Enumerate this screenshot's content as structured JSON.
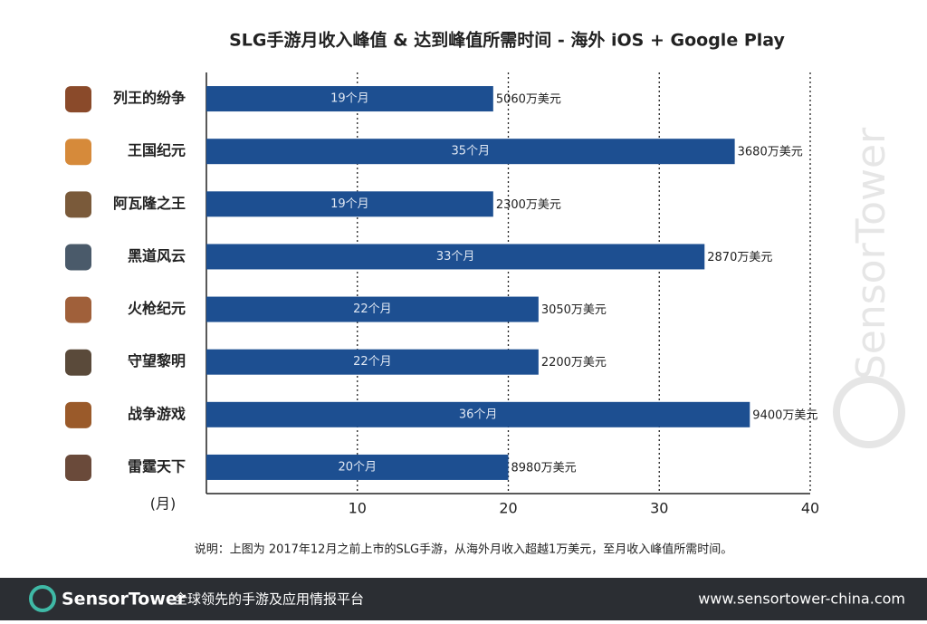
{
  "chart_data": {
    "type": "bar",
    "orientation": "horizontal",
    "title": "SLG手游月收入峰值 & 达到峰值所需时间 - 海外 iOS + Google Play",
    "categories": [
      "列王的纷争",
      "王国纪元",
      "阿瓦隆之王",
      "黑道风云",
      "火枪纪元",
      "守望黎明",
      "战争游戏",
      "雷霆天下"
    ],
    "values": [
      19,
      35,
      19,
      33,
      22,
      22,
      36,
      20
    ],
    "value_labels": [
      "19个月",
      "35个月",
      "19个月",
      "33个月",
      "22个月",
      "22个月",
      "36个月",
      "20个月"
    ],
    "revenue_labels": [
      "5060万美元",
      "3680万美元",
      "2300万美元",
      "2870万美元",
      "3050万美元",
      "2200万美元",
      "9400万美元",
      "8980万美元"
    ],
    "color": "#1d4f91",
    "xlabel": "(月)",
    "xlim": [
      0,
      40
    ],
    "xticks": [
      10,
      20,
      30,
      40
    ],
    "grid": true
  },
  "note": "说明：上图为 2017年12月之前上市的SLG手游，从海外月收入超越1万美元，至月收入峰值所需时间。",
  "watermark": "SensorTower",
  "footer": {
    "brand": "SensorTower",
    "slogan": "全球领先的手游及应用情报平台",
    "url": "www.sensortower-china.com"
  }
}
